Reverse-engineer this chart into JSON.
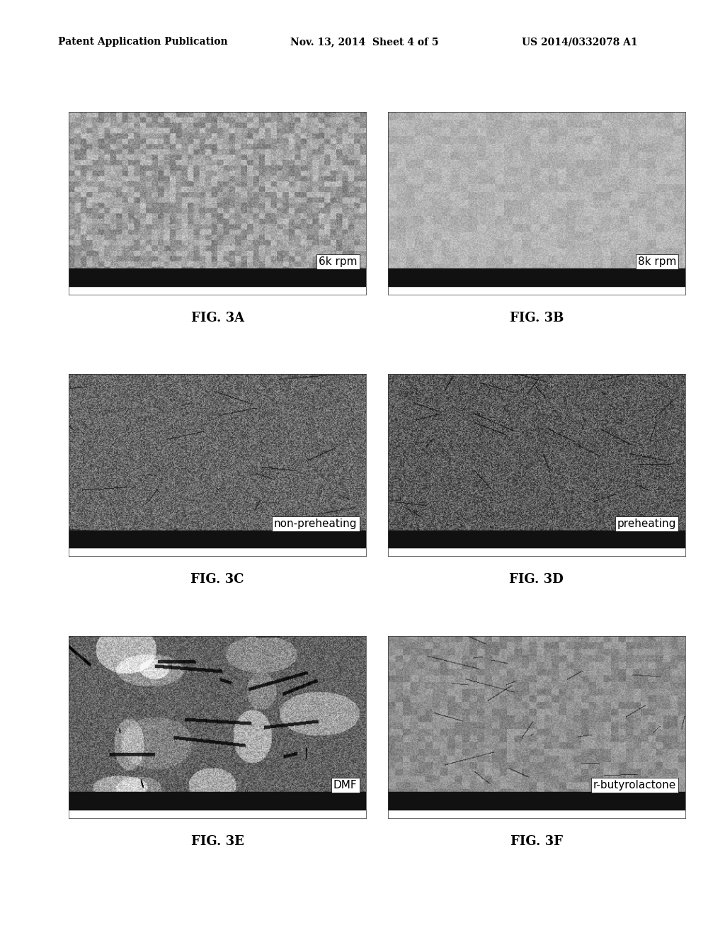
{
  "header_left": "Patent Application Publication",
  "header_center": "Nov. 13, 2014  Sheet 4 of 5",
  "header_right": "US 2014/0332078 A1",
  "panels": [
    {
      "label": "FIG. 3A",
      "overlay_text": "6k rpm",
      "row": 0,
      "col": 0,
      "texture": "grainy_light",
      "brightness": 0.62,
      "noise_scale": 0.18,
      "bottom_bar_color": "#1a1a1a"
    },
    {
      "label": "FIG. 3B",
      "overlay_text": "8k rpm",
      "row": 0,
      "col": 1,
      "texture": "fine_uniform",
      "brightness": 0.7,
      "noise_scale": 0.12,
      "bottom_bar_color": "#1a1a1a"
    },
    {
      "label": "FIG. 3C",
      "overlay_text": "non-preheating",
      "row": 1,
      "col": 0,
      "texture": "dark_cracked",
      "brightness": 0.4,
      "noise_scale": 0.14,
      "bottom_bar_color": "#111111"
    },
    {
      "label": "FIG. 3D",
      "overlay_text": "preheating",
      "row": 1,
      "col": 1,
      "texture": "dark_cracked2",
      "brightness": 0.35,
      "noise_scale": 0.14,
      "bottom_bar_color": "#111111"
    },
    {
      "label": "FIG. 3E",
      "overlay_text": "DMF",
      "row": 2,
      "col": 0,
      "texture": "lumpy",
      "brightness": 0.45,
      "noise_scale": 0.2,
      "bottom_bar_color": "#111111"
    },
    {
      "label": "FIG. 3F",
      "overlay_text": "r-butyrolactone",
      "row": 2,
      "col": 1,
      "texture": "cracked_medium",
      "brightness": 0.55,
      "noise_scale": 0.13,
      "bottom_bar_color": "#111111"
    }
  ],
  "background_color": "#ffffff",
  "label_fontsize": 13,
  "overlay_fontsize": 11,
  "header_fontsize": 10
}
